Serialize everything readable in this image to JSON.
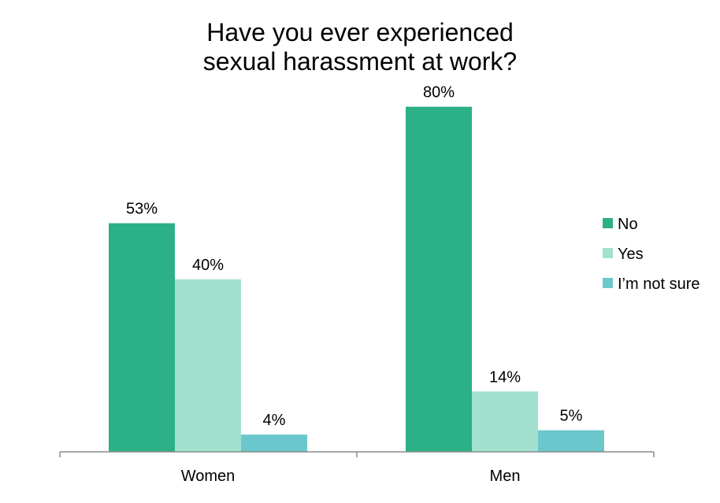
{
  "chart_data": {
    "type": "bar",
    "title": "Have you ever experienced sexual harassment at work?",
    "title_lines": [
      "Have you ever experienced",
      "sexual harassment at work?"
    ],
    "categories": [
      "Women",
      "Men"
    ],
    "series": [
      {
        "name": "No",
        "values": [
          53,
          80
        ],
        "labels": [
          "53%",
          "80%"
        ],
        "color": "#2bb087"
      },
      {
        "name": "Yes",
        "values": [
          40,
          14
        ],
        "labels": [
          "40%",
          "14%"
        ],
        "color": "#a2e0cf"
      },
      {
        "name": "I’m not sure",
        "values": [
          4,
          5
        ],
        "labels": [
          "4%",
          "5%"
        ],
        "color": "#6ac8cd"
      }
    ],
    "ylim": [
      0,
      100
    ],
    "grid": false,
    "legend_position": "right"
  }
}
